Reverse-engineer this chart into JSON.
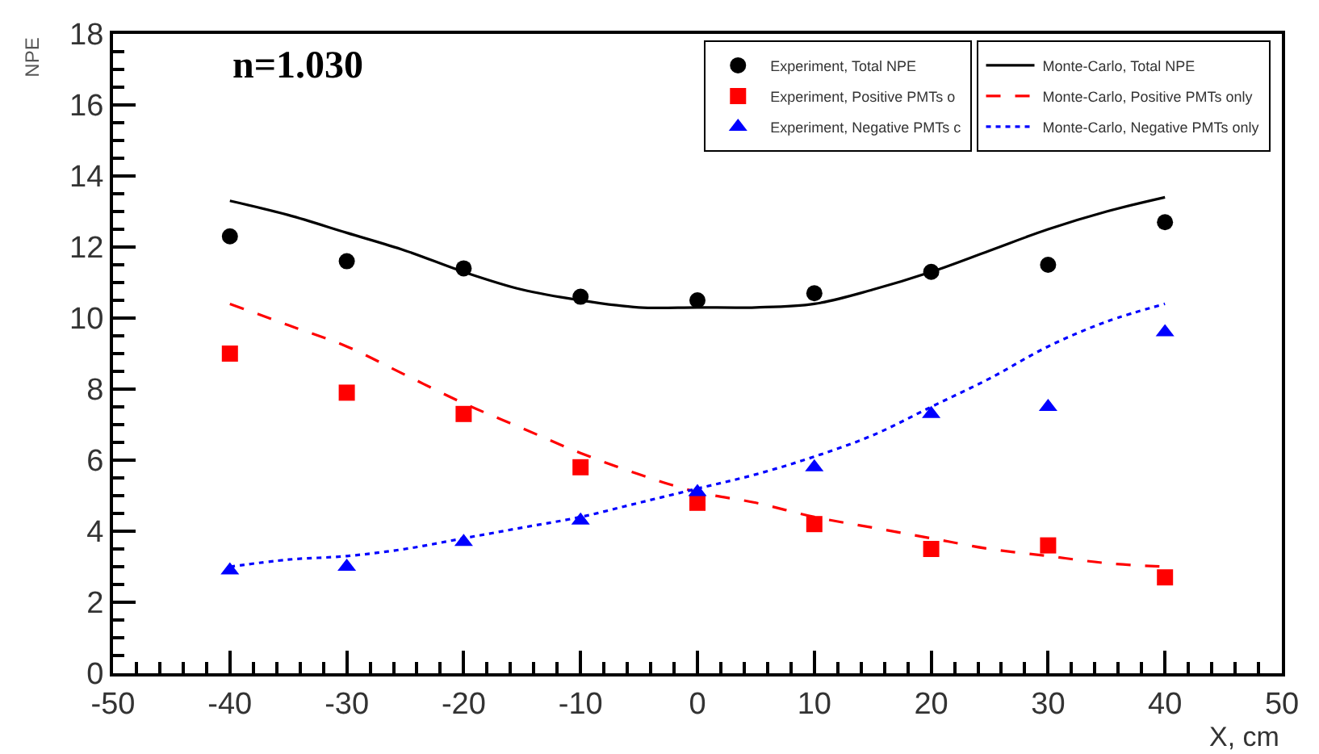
{
  "chart_data": {
    "type": "scatter",
    "xlabel": "X, cm",
    "ylabel": "NPE",
    "annotations": [
      "n=1.030"
    ],
    "xlim": [
      -50,
      50
    ],
    "xticks": [
      -50,
      -40,
      -30,
      -20,
      -10,
      0,
      10,
      20,
      30,
      40,
      50
    ],
    "ylim": [
      0,
      18
    ],
    "yticks": [
      0,
      2,
      4,
      6,
      8,
      10,
      12,
      14,
      16,
      18
    ],
    "legend": "top right",
    "series": [
      {
        "name": "Experiment, Total NPE",
        "marker": "circle",
        "color": "#000000",
        "x": [
          -40,
          -30,
          -20,
          -10,
          0,
          10,
          20,
          30,
          40
        ],
        "values": [
          12.3,
          11.6,
          11.4,
          10.6,
          10.5,
          10.7,
          11.3,
          11.5,
          12.7
        ]
      },
      {
        "name": "Monte-Carlo, Total NPE",
        "type": "line",
        "line_style": "solid",
        "color": "#000000",
        "x": [
          -40,
          -35,
          -30,
          -25,
          -20,
          -15,
          -10,
          -5,
          0,
          5,
          10,
          15,
          20,
          25,
          30,
          35,
          40
        ],
        "values": [
          13.3,
          12.9,
          12.4,
          11.9,
          11.3,
          10.8,
          10.5,
          10.3,
          10.3,
          10.3,
          10.4,
          10.8,
          11.3,
          11.9,
          12.5,
          13.0,
          13.4
        ]
      },
      {
        "name": "Experiment, Positive PMTs o",
        "marker": "square",
        "color": "#ff0000",
        "x": [
          -40,
          -30,
          -20,
          -10,
          0,
          10,
          20,
          30,
          40
        ],
        "values": [
          9.0,
          7.9,
          7.3,
          5.8,
          4.8,
          4.2,
          3.5,
          3.6,
          2.7
        ]
      },
      {
        "name": "Monte-Carlo, Positive PMTs only",
        "type": "line",
        "line_style": "dashed",
        "color": "#ff0000",
        "x": [
          -40,
          -35,
          -30,
          -25,
          -20,
          -15,
          -10,
          -5,
          0,
          5,
          10,
          15,
          20,
          25,
          30,
          35,
          40
        ],
        "values": [
          10.4,
          9.8,
          9.2,
          8.4,
          7.6,
          6.9,
          6.2,
          5.6,
          5.1,
          4.8,
          4.4,
          4.1,
          3.8,
          3.5,
          3.3,
          3.1,
          3.0
        ]
      },
      {
        "name": "Experiment, Negative PMTs c",
        "marker": "triangle",
        "color": "#0000ff",
        "x": [
          -40,
          -30,
          -20,
          -10,
          0,
          10,
          20,
          30,
          40
        ],
        "values": [
          2.9,
          3.0,
          3.7,
          4.3,
          5.1,
          5.8,
          7.3,
          7.5,
          9.6
        ]
      },
      {
        "name": "Monte-Carlo, Negative PMTs only",
        "type": "line",
        "line_style": "dotted",
        "color": "#0000ff",
        "x": [
          -40,
          -35,
          -30,
          -25,
          -20,
          -15,
          -10,
          -5,
          0,
          5,
          10,
          15,
          20,
          25,
          30,
          35,
          40
        ],
        "values": [
          3.0,
          3.2,
          3.3,
          3.5,
          3.8,
          4.1,
          4.4,
          4.8,
          5.2,
          5.6,
          6.1,
          6.7,
          7.5,
          8.3,
          9.2,
          9.9,
          10.4
        ]
      }
    ]
  }
}
